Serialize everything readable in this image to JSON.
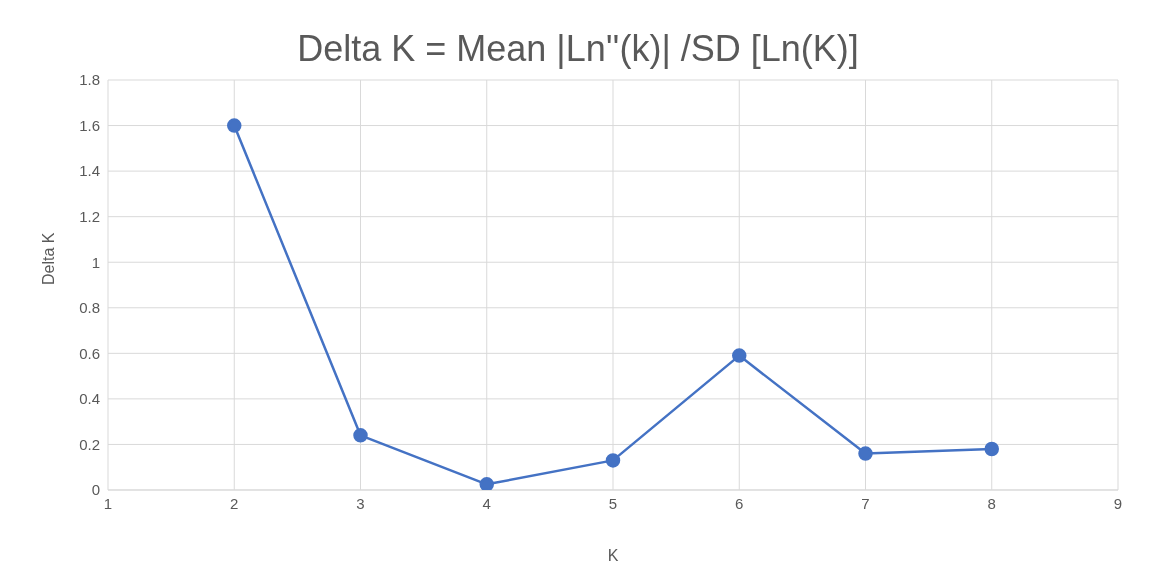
{
  "chart_data": {
    "type": "line",
    "title": "Delta K = Mean |Ln''(k)| /SD [Ln(K)]",
    "xlabel": "K",
    "ylabel": "Delta K",
    "x": [
      2,
      3,
      4,
      5,
      6,
      7,
      8
    ],
    "series": [
      {
        "color": "#4472c4",
        "values": [
          1.6,
          0.24,
          0.025,
          0.13,
          0.59,
          0.16,
          0.18
        ]
      }
    ],
    "xlim": [
      1,
      9
    ],
    "xticks": [
      1,
      2,
      3,
      4,
      5,
      6,
      7,
      8,
      9
    ],
    "ylim": [
      0,
      1.8
    ],
    "yticks": [
      0,
      0.2,
      0.4,
      0.6,
      0.8,
      1,
      1.2,
      1.4,
      1.6,
      1.8
    ],
    "grid": true,
    "marker": "circle",
    "line_style": "solid"
  }
}
